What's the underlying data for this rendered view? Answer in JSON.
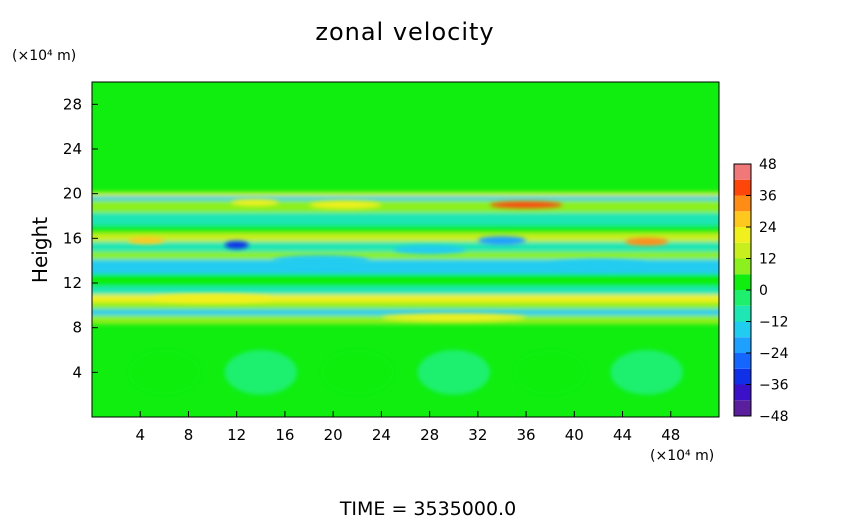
{
  "chart_data": {
    "type": "heatmap",
    "title": "zonal velocity",
    "ylabel": "Height",
    "xlabel": "",
    "x_unit": "(×10⁴ m)",
    "y_unit": "(×10⁴ m)",
    "xlim": [
      0,
      52
    ],
    "ylim": [
      0,
      30
    ],
    "x_ticks": [
      4,
      8,
      12,
      16,
      20,
      24,
      28,
      32,
      36,
      40,
      44,
      48
    ],
    "y_ticks": [
      4,
      8,
      12,
      16,
      20,
      24,
      28
    ],
    "colorbar": {
      "range": [
        -48,
        48
      ],
      "ticks": [
        48,
        36,
        24,
        12,
        0,
        -12,
        -24,
        -36,
        -48
      ],
      "levels": [
        {
          "from": -48,
          "to": -42,
          "color": "#5a1f9c"
        },
        {
          "from": -42,
          "to": -36,
          "color": "#3a10c8"
        },
        {
          "from": -36,
          "to": -30,
          "color": "#1030e8"
        },
        {
          "from": -30,
          "to": -24,
          "color": "#1466ff"
        },
        {
          "from": -24,
          "to": -18,
          "color": "#1ea0ff"
        },
        {
          "from": -18,
          "to": -12,
          "color": "#20ccf0"
        },
        {
          "from": -12,
          "to": -6,
          "color": "#1ee6b4"
        },
        {
          "from": -6,
          "to": 0,
          "color": "#1ef06e"
        },
        {
          "from": 0,
          "to": 6,
          "color": "#10ee10"
        },
        {
          "from": 6,
          "to": 12,
          "color": "#8cf01e"
        },
        {
          "from": 12,
          "to": 18,
          "color": "#c8ee1e"
        },
        {
          "from": 18,
          "to": 24,
          "color": "#f0f01e"
        },
        {
          "from": 24,
          "to": 30,
          "color": "#ffc81e"
        },
        {
          "from": 30,
          "to": 36,
          "color": "#ff8c14"
        },
        {
          "from": 36,
          "to": 42,
          "color": "#ff460a"
        },
        {
          "from": 42,
          "to": 48,
          "color": "#f07878"
        }
      ]
    },
    "background_value": 1,
    "bands": [
      {
        "y": 19.9,
        "half_width": 0.25,
        "value": 14
      },
      {
        "y": 19.4,
        "half_width": 0.35,
        "value": -14
      },
      {
        "y": 18.8,
        "half_width": 0.6,
        "value": 10
      },
      {
        "y": 17.7,
        "half_width": 0.6,
        "value": -7
      },
      {
        "y": 16.4,
        "half_width": 0.6,
        "value": 5
      },
      {
        "y": 15.9,
        "half_width": 0.55,
        "value": 16
      },
      {
        "y": 15.2,
        "half_width": 0.5,
        "value": -10
      },
      {
        "y": 14.2,
        "half_width": 0.6,
        "value": 8
      },
      {
        "y": 13.4,
        "half_width": 0.7,
        "value": -13
      },
      {
        "y": 12.2,
        "half_width": 0.6,
        "value": 3
      },
      {
        "y": 11.2,
        "half_width": 0.5,
        "value": -7
      },
      {
        "y": 10.5,
        "half_width": 0.45,
        "value": 19
      },
      {
        "y": 9.9,
        "half_width": 0.35,
        "value": 8
      },
      {
        "y": 9.3,
        "half_width": 0.35,
        "value": -16
      },
      {
        "y": 8.7,
        "half_width": 0.4,
        "value": 10
      }
    ],
    "features": [
      {
        "x": 36,
        "y": 19.0,
        "rx": 3.0,
        "ry": 0.3,
        "value": 36
      },
      {
        "x": 21,
        "y": 19.0,
        "rx": 3.0,
        "ry": 0.35,
        "value": 20
      },
      {
        "x": 13.5,
        "y": 19.2,
        "rx": 2.0,
        "ry": 0.3,
        "value": 18
      },
      {
        "x": 4.5,
        "y": 15.8,
        "rx": 1.5,
        "ry": 0.3,
        "value": 28
      },
      {
        "x": 46,
        "y": 15.7,
        "rx": 1.8,
        "ry": 0.35,
        "value": 30
      },
      {
        "x": 12,
        "y": 15.4,
        "rx": 1.0,
        "ry": 0.35,
        "value": -36
      },
      {
        "x": 34,
        "y": 15.8,
        "rx": 2.0,
        "ry": 0.4,
        "value": -20
      },
      {
        "x": 28,
        "y": 15.0,
        "rx": 3.0,
        "ry": 0.4,
        "value": -18
      },
      {
        "x": 19,
        "y": 14.0,
        "rx": 4.0,
        "ry": 0.5,
        "value": -18
      },
      {
        "x": 42,
        "y": 13.6,
        "rx": 4.0,
        "ry": 0.5,
        "value": -16
      },
      {
        "x": 10,
        "y": 10.6,
        "rx": 5.0,
        "ry": 0.4,
        "value": 22
      },
      {
        "x": 30,
        "y": 8.9,
        "rx": 6.0,
        "ry": 0.35,
        "value": 20
      },
      {
        "x": 6,
        "y": 4.0,
        "rx": 3.0,
        "ry": 2.0,
        "value": 4
      },
      {
        "x": 14,
        "y": 4.0,
        "rx": 3.0,
        "ry": 2.0,
        "value": -3
      },
      {
        "x": 22,
        "y": 4.0,
        "rx": 3.0,
        "ry": 2.0,
        "value": 4
      },
      {
        "x": 30,
        "y": 4.0,
        "rx": 3.0,
        "ry": 2.0,
        "value": -3
      },
      {
        "x": 38,
        "y": 4.0,
        "rx": 3.0,
        "ry": 2.0,
        "value": 4
      },
      {
        "x": 46,
        "y": 4.0,
        "rx": 3.0,
        "ry": 2.0,
        "value": -3
      }
    ]
  },
  "footer": {
    "time_label": "TIME  =  3535000.0"
  }
}
